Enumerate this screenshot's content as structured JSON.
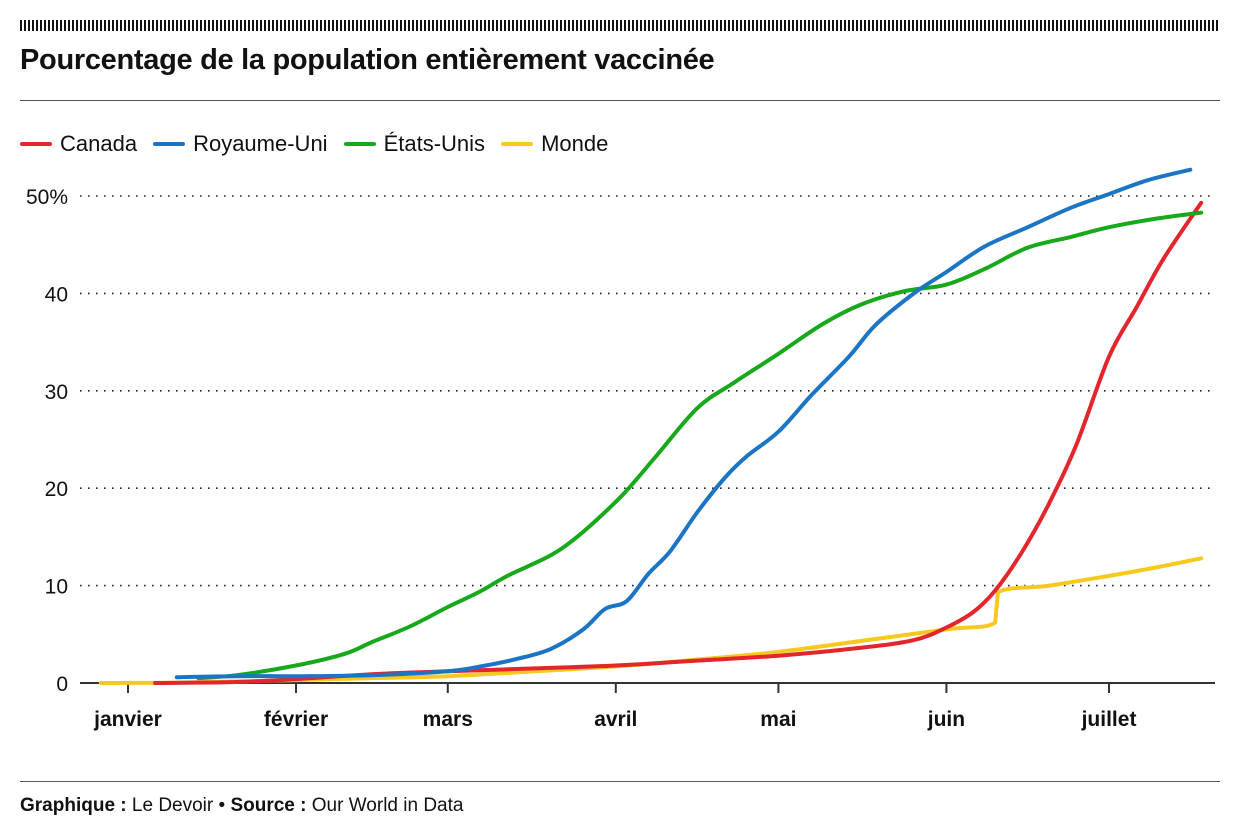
{
  "header": {
    "title": "Pourcentage de la population entièrement vaccinée"
  },
  "legend": [
    {
      "name": "Canada",
      "color": "#e3262b"
    },
    {
      "name": "Royaume-Uni",
      "color": "#1b75c4"
    },
    {
      "name": "États-Unis",
      "color": "#17a81b"
    },
    {
      "name": "Monde",
      "color": "#f7c81e"
    }
  ],
  "footer": {
    "credit_label": "Graphique :",
    "credit_value": "Le Devoir",
    "separator": "•",
    "source_label": "Source :",
    "source_value": "Our World in Data"
  },
  "chart_data": {
    "type": "line",
    "title": "Pourcentage de la population entièrement vaccinée",
    "xlabel": "",
    "ylabel": "",
    "x_unit": "days since January 1",
    "xlim": [
      -9,
      201
    ],
    "ylim": [
      0,
      52
    ],
    "yticks": [
      0,
      10,
      20,
      30,
      40,
      50
    ],
    "ytick_labels": [
      "0",
      "10",
      "20",
      "30",
      "40",
      "50%"
    ],
    "xticks": [
      0,
      31,
      59,
      90,
      120,
      151,
      181
    ],
    "xtick_labels": [
      "janvier",
      "février",
      "mars",
      "avril",
      "mai",
      "juin",
      "juillet"
    ],
    "grid": "horizontal dotted",
    "legend_position": "top-left",
    "series": [
      {
        "name": "Monde",
        "color": "#f7c81e",
        "points": [
          [
            -5,
            0
          ],
          [
            10,
            0.05
          ],
          [
            31,
            0.3
          ],
          [
            45,
            0.5
          ],
          [
            59,
            0.7
          ],
          [
            75,
            1.2
          ],
          [
            90,
            1.7
          ],
          [
            105,
            2.4
          ],
          [
            120,
            3.2
          ],
          [
            135,
            4.3
          ],
          [
            151,
            5.5
          ],
          [
            160,
            6.2
          ],
          [
            160.5,
            9.3
          ],
          [
            170,
            10.0
          ],
          [
            181,
            11.0
          ],
          [
            190,
            11.9
          ],
          [
            198,
            12.8
          ]
        ]
      },
      {
        "name": "Canada",
        "color": "#e3262b",
        "points": [
          [
            5,
            0
          ],
          [
            20,
            0.1
          ],
          [
            31,
            0.4
          ],
          [
            45,
            0.9
          ],
          [
            59,
            1.2
          ],
          [
            75,
            1.5
          ],
          [
            90,
            1.8
          ],
          [
            105,
            2.3
          ],
          [
            120,
            2.8
          ],
          [
            135,
            3.6
          ],
          [
            145,
            4.4
          ],
          [
            151,
            5.7
          ],
          [
            156,
            7.3
          ],
          [
            160,
            9.5
          ],
          [
            165,
            13.5
          ],
          [
            170,
            18.5
          ],
          [
            175,
            24.5
          ],
          [
            181,
            33.5
          ],
          [
            186,
            38.5
          ],
          [
            191,
            43.5
          ],
          [
            198,
            49.3
          ]
        ]
      },
      {
        "name": "États-Unis",
        "color": "#17a81b",
        "points": [
          [
            13,
            0.5
          ],
          [
            20,
            0.8
          ],
          [
            31,
            1.8
          ],
          [
            40,
            3.0
          ],
          [
            45,
            4.2
          ],
          [
            52,
            5.8
          ],
          [
            59,
            7.8
          ],
          [
            65,
            9.4
          ],
          [
            70,
            11.0
          ],
          [
            80,
            13.8
          ],
          [
            90,
            18.6
          ],
          [
            97,
            23.0
          ],
          [
            105,
            28.2
          ],
          [
            112,
            30.9
          ],
          [
            120,
            33.8
          ],
          [
            128,
            36.8
          ],
          [
            135,
            38.8
          ],
          [
            143,
            40.2
          ],
          [
            151,
            40.9
          ],
          [
            158,
            42.5
          ],
          [
            166,
            44.7
          ],
          [
            174,
            45.8
          ],
          [
            181,
            46.8
          ],
          [
            190,
            47.7
          ],
          [
            198,
            48.3
          ]
        ]
      },
      {
        "name": "Royaume-Uni",
        "color": "#1b75c4",
        "points": [
          [
            9,
            0.6
          ],
          [
            20,
            0.7
          ],
          [
            31,
            0.7
          ],
          [
            45,
            0.8
          ],
          [
            59,
            1.2
          ],
          [
            66,
            1.8
          ],
          [
            72,
            2.5
          ],
          [
            78,
            3.5
          ],
          [
            84,
            5.5
          ],
          [
            88,
            7.6
          ],
          [
            92,
            8.4
          ],
          [
            96,
            11.2
          ],
          [
            100,
            13.5
          ],
          [
            105,
            17.5
          ],
          [
            110,
            21.0
          ],
          [
            114,
            23.2
          ],
          [
            120,
            25.8
          ],
          [
            126,
            29.5
          ],
          [
            133,
            33.5
          ],
          [
            138,
            36.8
          ],
          [
            145,
            40.0
          ],
          [
            151,
            42.2
          ],
          [
            158,
            44.8
          ],
          [
            166,
            46.8
          ],
          [
            174,
            48.8
          ],
          [
            181,
            50.2
          ],
          [
            188,
            51.6
          ],
          [
            196,
            52.7
          ]
        ]
      }
    ]
  }
}
